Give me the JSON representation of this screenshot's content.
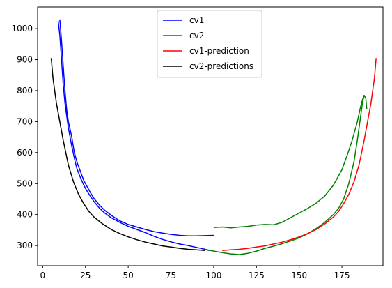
{
  "chart_data": {
    "type": "line",
    "title": "",
    "xlabel": "",
    "ylabel": "",
    "xlim": [
      -3,
      199
    ],
    "ylim": [
      235,
      1070
    ],
    "xticks": [
      0,
      25,
      50,
      75,
      100,
      125,
      150,
      175
    ],
    "yticks": [
      300,
      400,
      500,
      600,
      700,
      800,
      900,
      1000
    ],
    "grid": false,
    "legend_position": "top-center",
    "series": [
      {
        "name": "cv1",
        "color": "#0000ff",
        "segments": [
          [
            [
              10,
              1030
            ],
            [
              11,
              960
            ],
            [
              12,
              880
            ],
            [
              13,
              800
            ],
            [
              14,
              740
            ],
            [
              15,
              700
            ],
            [
              16,
              675
            ],
            [
              17,
              650
            ],
            [
              18,
              615
            ],
            [
              19,
              590
            ],
            [
              20,
              570
            ],
            [
              22,
              540
            ],
            [
              24,
              510
            ],
            [
              26,
              490
            ],
            [
              28,
              470
            ],
            [
              30,
              452
            ],
            [
              33,
              432
            ],
            [
              36,
              415
            ],
            [
              40,
              398
            ],
            [
              45,
              380
            ],
            [
              50,
              368
            ],
            [
              55,
              360
            ],
            [
              60,
              352
            ],
            [
              65,
              345
            ],
            [
              70,
              340
            ],
            [
              75,
              336
            ],
            [
              80,
              333
            ],
            [
              85,
              331
            ],
            [
              90,
              331
            ],
            [
              95,
              332
            ],
            [
              100,
              333
            ]
          ],
          [
            [
              9,
              1025
            ],
            [
              10,
              980
            ],
            [
              11,
              900
            ],
            [
              12,
              820
            ],
            [
              13,
              760
            ],
            [
              14,
              720
            ],
            [
              15,
              680
            ],
            [
              16,
              650
            ],
            [
              17,
              620
            ],
            [
              18,
              595
            ],
            [
              19,
              570
            ],
            [
              20,
              548
            ],
            [
              22,
              520
            ],
            [
              24,
              495
            ],
            [
              26,
              475
            ],
            [
              28,
              458
            ],
            [
              30,
              442
            ],
            [
              33,
              422
            ],
            [
              36,
              406
            ],
            [
              40,
              390
            ],
            [
              45,
              375
            ],
            [
              50,
              362
            ],
            [
              55,
              352
            ],
            [
              60,
              342
            ],
            [
              65,
              330
            ],
            [
              70,
              320
            ],
            [
              75,
              312
            ],
            [
              80,
              305
            ],
            [
              85,
              300
            ],
            [
              90,
              294
            ],
            [
              95,
              288
            ],
            [
              98,
              283
            ]
          ]
        ]
      },
      {
        "name": "cv2",
        "color": "#008000",
        "segments": [
          [
            [
              95,
              288
            ],
            [
              100,
              282
            ],
            [
              105,
              277
            ],
            [
              110,
              273
            ],
            [
              115,
              271
            ],
            [
              120,
              275
            ],
            [
              125,
              282
            ],
            [
              130,
              291
            ],
            [
              135,
              298
            ],
            [
              140,
              306
            ],
            [
              145,
              315
            ],
            [
              150,
              325
            ],
            [
              155,
              338
            ],
            [
              160,
              355
            ],
            [
              165,
              375
            ],
            [
              170,
              400
            ],
            [
              173,
              420
            ],
            [
              176,
              450
            ],
            [
              179,
              500
            ],
            [
              182,
              570
            ],
            [
              184,
              640
            ],
            [
              186,
              720
            ],
            [
              187,
              760
            ],
            [
              188,
              785
            ]
          ],
          [
            [
              100,
              358
            ],
            [
              105,
              360
            ],
            [
              110,
              357
            ],
            [
              115,
              360
            ],
            [
              120,
              362
            ],
            [
              125,
              366
            ],
            [
              130,
              368
            ],
            [
              135,
              367
            ],
            [
              140,
              375
            ],
            [
              145,
              390
            ],
            [
              150,
              405
            ],
            [
              155,
              420
            ],
            [
              160,
              437
            ],
            [
              165,
              460
            ],
            [
              170,
              495
            ],
            [
              175,
              545
            ],
            [
              178,
              590
            ],
            [
              181,
              640
            ],
            [
              184,
              700
            ],
            [
              186,
              750
            ],
            [
              187,
              770
            ],
            [
              188,
              785
            ],
            [
              189,
              775
            ],
            [
              189.5,
              740
            ]
          ]
        ]
      },
      {
        "name": "cv1-prediction",
        "color": "#ff0000",
        "segments": [
          [
            [
              105,
              284
            ],
            [
              110,
              286
            ],
            [
              115,
              288
            ],
            [
              120,
              291
            ],
            [
              125,
              295
            ],
            [
              130,
              299
            ],
            [
              135,
              305
            ],
            [
              140,
              311
            ],
            [
              145,
              319
            ],
            [
              150,
              328
            ],
            [
              155,
              339
            ],
            [
              160,
              352
            ],
            [
              165,
              370
            ],
            [
              170,
              392
            ],
            [
              173,
              410
            ],
            [
              176,
              435
            ],
            [
              179,
              465
            ],
            [
              182,
              505
            ],
            [
              185,
              560
            ],
            [
              188,
              640
            ],
            [
              190,
              700
            ],
            [
              192,
              760
            ],
            [
              194,
              840
            ],
            [
              195,
              905
            ]
          ]
        ]
      },
      {
        "name": "cv2-predictions",
        "color": "#000000",
        "segments": [
          [
            [
              5,
              905
            ],
            [
              6,
              840
            ],
            [
              8,
              760
            ],
            [
              10,
              700
            ],
            [
              12,
              640
            ],
            [
              15,
              560
            ],
            [
              18,
              505
            ],
            [
              21,
              465
            ],
            [
              24,
              435
            ],
            [
              27,
              410
            ],
            [
              30,
              392
            ],
            [
              35,
              370
            ],
            [
              40,
              352
            ],
            [
              45,
              339
            ],
            [
              50,
              328
            ],
            [
              55,
              319
            ],
            [
              60,
              311
            ],
            [
              65,
              305
            ],
            [
              70,
              299
            ],
            [
              75,
              295
            ],
            [
              80,
              291
            ],
            [
              85,
              288
            ],
            [
              90,
              286
            ],
            [
              95,
              284
            ]
          ]
        ]
      }
    ]
  }
}
